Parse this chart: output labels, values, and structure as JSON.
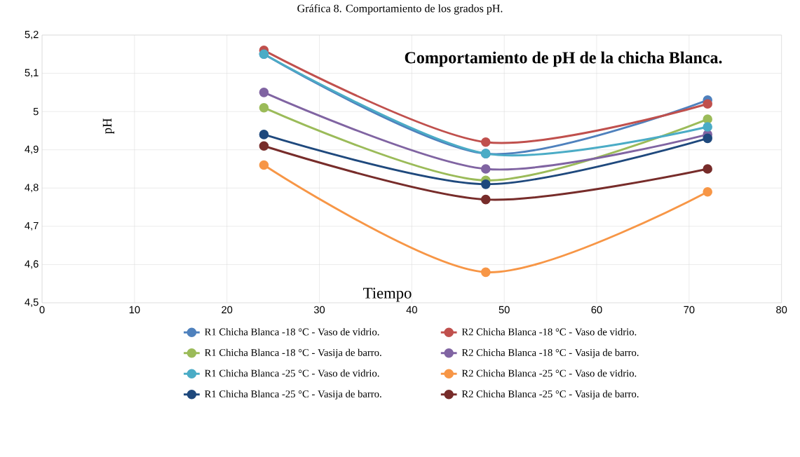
{
  "chart_data": {
    "type": "line",
    "title": "Comportamiento de pH de la chicha Blanca.",
    "xlabel": "Tiempo",
    "ylabel": "pH",
    "annotations": [
      "Gráfica 8. Comportamiento de los grados pH."
    ],
    "x": [
      24,
      48,
      72
    ],
    "series": [
      {
        "name": "R1 Chicha Blanca -18 °C - Vaso de vidrio.",
        "color": "#4f81bd",
        "values": [
          5.15,
          4.89,
          5.03
        ]
      },
      {
        "name": "R2 Chicha Blanca -18 °C - Vaso de vidrio.",
        "color": "#c0504d",
        "values": [
          5.16,
          4.92,
          5.02
        ]
      },
      {
        "name": "R1 Chicha Blanca -18 °C - Vasija de barro.",
        "color": "#9bbb59",
        "values": [
          5.01,
          4.82,
          4.98
        ]
      },
      {
        "name": "R2 Chicha Blanca -18 °C - Vasija de barro.",
        "color": "#8064a2",
        "values": [
          5.05,
          4.85,
          4.94
        ]
      },
      {
        "name": "R1 Chicha Blanca -25 °C - Vaso de vidrio.",
        "color": "#4bacc6",
        "values": [
          5.15,
          4.89,
          4.96
        ]
      },
      {
        "name": "R2 Chicha Blanca -25 °C - Vaso de vidrio.",
        "color": "#f79646",
        "values": [
          4.86,
          4.58,
          4.79
        ]
      },
      {
        "name": "R1 Chicha Blanca -25 °C - Vasija de barro.",
        "color": "#1f497d",
        "values": [
          4.94,
          4.81,
          4.93
        ]
      },
      {
        "name": "R2 Chicha Blanca -25 °C - Vasija de barro.",
        "color": "#772c2a",
        "values": [
          4.91,
          4.77,
          4.85
        ]
      }
    ],
    "xlim": [
      0,
      80
    ],
    "xticks": [
      0,
      10,
      20,
      30,
      40,
      50,
      60,
      70,
      80
    ],
    "ylim": [
      4.5,
      5.2
    ],
    "yticks": [
      {
        "value": 4.5,
        "label": "4,5"
      },
      {
        "value": 4.6,
        "label": "4,6"
      },
      {
        "value": 4.7,
        "label": "4,7"
      },
      {
        "value": 4.8,
        "label": "4,8"
      },
      {
        "value": 4.9,
        "label": "4,9"
      },
      5,
      {
        "value": 5.1,
        "label": "5,1"
      },
      {
        "value": 5.2,
        "label": "5,2"
      }
    ],
    "grid": true,
    "legend": "bottom",
    "marker": "circle",
    "line_style": "solid"
  }
}
